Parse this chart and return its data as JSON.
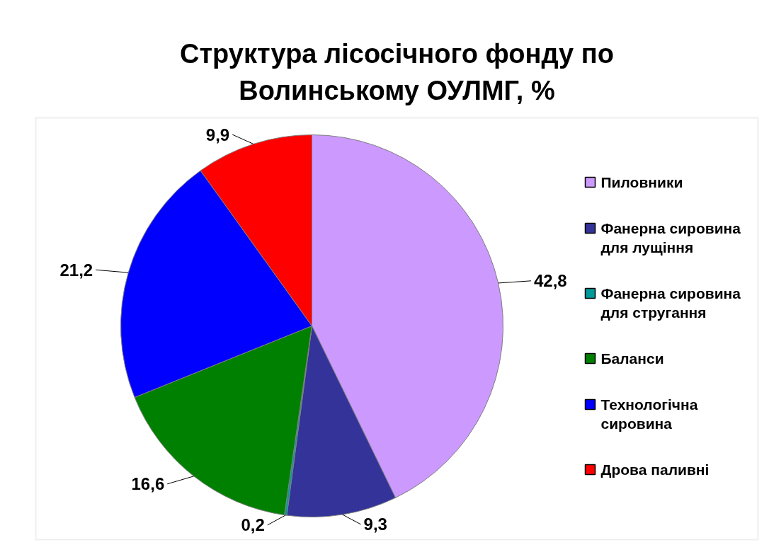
{
  "chart_data": {
    "type": "pie",
    "title": "Структура лісосічного фонду по Волинському ОУЛМГ, %",
    "categories": [
      "Пиловники",
      "Фанерна сировина для лущіння",
      "Фанерна сировина для стругання",
      "Баланси",
      "Технологічна сировина",
      "Дрова паливні"
    ],
    "values": [
      42.8,
      9.3,
      0.2,
      16.6,
      21.2,
      9.9
    ],
    "value_labels": [
      "42,8",
      "9,3",
      "0,2",
      "16,6",
      "21,2",
      "9,9"
    ],
    "colors": [
      "#cc99ff",
      "#333399",
      "#009999",
      "#008000",
      "#0000ff",
      "#ff0000"
    ],
    "legend": "right"
  }
}
